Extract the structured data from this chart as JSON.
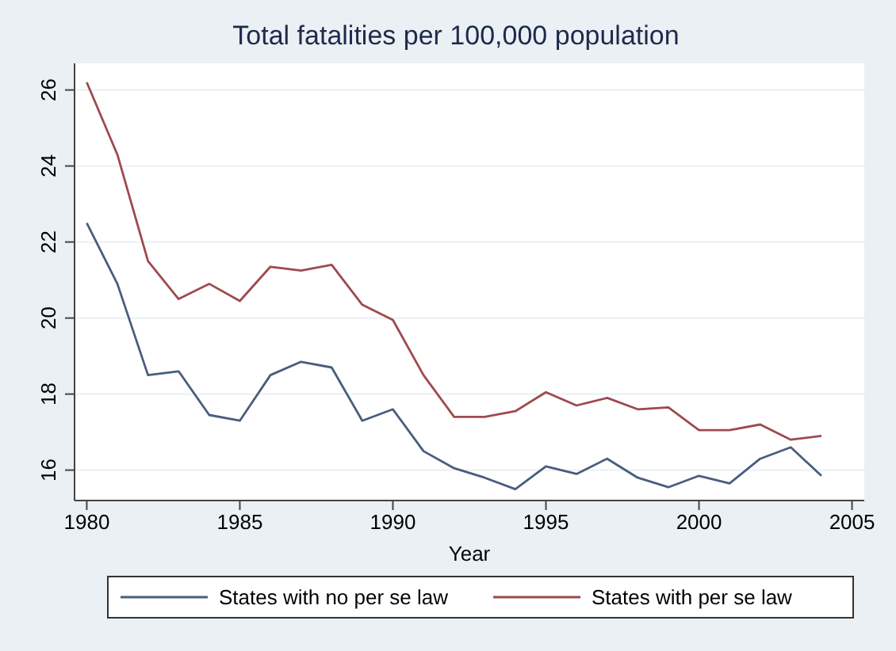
{
  "chart_data": {
    "type": "line",
    "title": "Total fatalities per 100,000 population",
    "xlabel": "Year",
    "x": [
      1980,
      1981,
      1982,
      1983,
      1984,
      1985,
      1986,
      1987,
      1988,
      1989,
      1990,
      1991,
      1992,
      1993,
      1994,
      1995,
      1996,
      1997,
      1998,
      1999,
      2000,
      2001,
      2002,
      2003,
      2004
    ],
    "series": [
      {
        "name": "States with no per se law",
        "color": "#4a5d7e",
        "values": [
          22.5,
          20.9,
          18.5,
          18.6,
          17.45,
          17.3,
          18.5,
          18.85,
          18.7,
          17.3,
          17.6,
          16.5,
          16.05,
          15.8,
          15.5,
          16.1,
          15.9,
          16.3,
          15.8,
          15.55,
          15.85,
          15.65,
          16.3,
          16.6,
          15.85
        ]
      },
      {
        "name": "States with per se law",
        "color": "#9e4a4f",
        "values": [
          26.2,
          24.3,
          21.5,
          20.5,
          20.9,
          20.45,
          21.35,
          21.25,
          21.4,
          20.35,
          19.95,
          18.5,
          17.4,
          17.4,
          17.55,
          18.05,
          17.7,
          17.9,
          17.6,
          17.65,
          17.05,
          17.05,
          17.2,
          16.8,
          16.9
        ]
      }
    ],
    "xlim": [
      1979.6,
      2005.4
    ],
    "ylim": [
      15.2,
      26.7
    ],
    "xticks": [
      1980,
      1985,
      1990,
      1995,
      2000,
      2005
    ],
    "yticks": [
      16,
      18,
      20,
      22,
      24,
      26
    ],
    "grid": "y",
    "legend": "bottom",
    "marker": "none",
    "line_style": "solid"
  }
}
